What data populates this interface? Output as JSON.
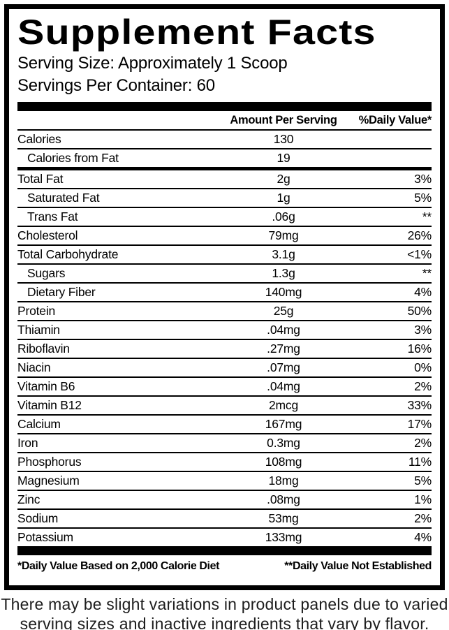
{
  "panel": {
    "title": "Supplement Facts",
    "serving_size": "Serving Size: Approximately 1 Scoop",
    "servings_per_container": "Servings Per Container: 60",
    "columns": {
      "amount": "Amount Per Serving",
      "daily_value": "%Daily Value*"
    },
    "rows": [
      {
        "name": "Calories",
        "amount": "130",
        "dv": "",
        "indent": false,
        "thick_sep": false
      },
      {
        "name": "Calories from Fat",
        "amount": "19",
        "dv": "",
        "indent": true,
        "thick_sep": true
      },
      {
        "name": "Total Fat",
        "amount": "2g",
        "dv": "3%",
        "indent": false,
        "thick_sep": false
      },
      {
        "name": "Saturated Fat",
        "amount": "1g",
        "dv": "5%",
        "indent": true,
        "thick_sep": false
      },
      {
        "name": "Trans Fat",
        "amount": ".06g",
        "dv": "**",
        "indent": true,
        "thick_sep": false
      },
      {
        "name": "Cholesterol",
        "amount": "79mg",
        "dv": "26%",
        "indent": false,
        "thick_sep": false
      },
      {
        "name": "Total Carbohydrate",
        "amount": "3.1g",
        "dv": "<1%",
        "indent": false,
        "thick_sep": false
      },
      {
        "name": "Sugars",
        "amount": "1.3g",
        "dv": "**",
        "indent": true,
        "thick_sep": false
      },
      {
        "name": "Dietary Fiber",
        "amount": "140mg",
        "dv": "4%",
        "indent": true,
        "thick_sep": false
      },
      {
        "name": "Protein",
        "amount": "25g",
        "dv": "50%",
        "indent": false,
        "thick_sep": false
      },
      {
        "name": "Thiamin",
        "amount": ".04mg",
        "dv": "3%",
        "indent": false,
        "thick_sep": false
      },
      {
        "name": "Riboflavin",
        "amount": ".27mg",
        "dv": "16%",
        "indent": false,
        "thick_sep": false
      },
      {
        "name": "Niacin",
        "amount": ".07mg",
        "dv": "0%",
        "indent": false,
        "thick_sep": false
      },
      {
        "name": "Vitamin B6",
        "amount": ".04mg",
        "dv": "2%",
        "indent": false,
        "thick_sep": false
      },
      {
        "name": "Vitamin B12",
        "amount": "2mcg",
        "dv": "33%",
        "indent": false,
        "thick_sep": false
      },
      {
        "name": "Calcium",
        "amount": "167mg",
        "dv": "17%",
        "indent": false,
        "thick_sep": false
      },
      {
        "name": "Iron",
        "amount": "0.3mg",
        "dv": "2%",
        "indent": false,
        "thick_sep": false
      },
      {
        "name": "Phosphorus",
        "amount": "108mg",
        "dv": "11%",
        "indent": false,
        "thick_sep": false
      },
      {
        "name": "Magnesium",
        "amount": "18mg",
        "dv": "5%",
        "indent": false,
        "thick_sep": false
      },
      {
        "name": "Zinc",
        "amount": ".08mg",
        "dv": "1%",
        "indent": false,
        "thick_sep": false
      },
      {
        "name": "Sodium",
        "amount": "53mg",
        "dv": "2%",
        "indent": false,
        "thick_sep": false
      },
      {
        "name": "Potassium",
        "amount": "133mg",
        "dv": "4%",
        "indent": false,
        "thick_sep": false
      }
    ],
    "footnotes": {
      "daily_value": "*Daily Value Based on 2,000 Calorie Diet",
      "not_established": "**Daily Value Not Established"
    }
  },
  "disclaimer": {
    "line1": "There may be slight variations in product panels due to varied",
    "line2": "serving sizes and inactive ingredients that vary by flavor."
  },
  "colors": {
    "ink": "#000000",
    "background": "#ffffff",
    "disclaimer_text": "#1d1d1d"
  }
}
